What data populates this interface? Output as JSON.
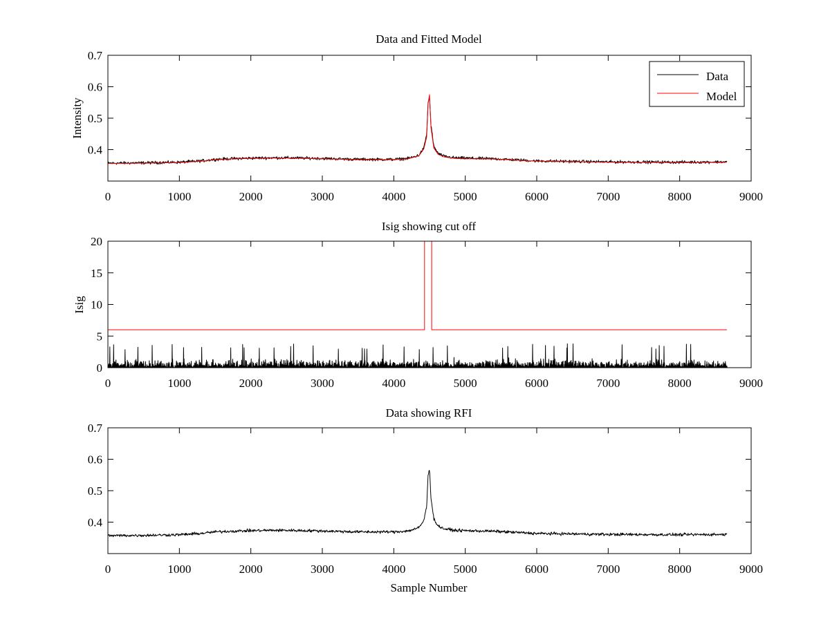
{
  "figure": {
    "background": "#ffffff",
    "colors": {
      "data": "#000000",
      "model": "#ff0000"
    }
  },
  "chart_data": [
    {
      "type": "line",
      "title": "Data and Fitted Model",
      "xlabel": "",
      "ylabel": "Intensity",
      "xlim": [
        0,
        9000
      ],
      "ylim": [
        0.3,
        0.7
      ],
      "xticks": [
        0,
        1000,
        2000,
        3000,
        4000,
        5000,
        6000,
        7000,
        8000,
        9000
      ],
      "yticks": [
        0.4,
        0.5,
        0.6,
        0.7
      ],
      "ytick_labels": [
        "0.4",
        "0.5",
        "0.6",
        "0.7"
      ],
      "legend": {
        "position": "top-right",
        "entries": [
          "Data",
          "Model"
        ]
      },
      "series": [
        {
          "name": "Data",
          "color": "#000000",
          "noise": 0.004,
          "x": [
            0,
            500,
            1000,
            1300,
            1500,
            1700,
            2000,
            2300,
            2500,
            3000,
            3500,
            4000,
            4200,
            4350,
            4420,
            4460,
            4480,
            4500,
            4520,
            4560,
            4620,
            4700,
            4850,
            5000,
            5400,
            6000,
            7000,
            8000,
            8660
          ],
          "y": [
            0.357,
            0.358,
            0.36,
            0.364,
            0.369,
            0.371,
            0.373,
            0.374,
            0.374,
            0.372,
            0.369,
            0.369,
            0.372,
            0.382,
            0.405,
            0.45,
            0.55,
            0.57,
            0.48,
            0.41,
            0.388,
            0.379,
            0.374,
            0.373,
            0.371,
            0.364,
            0.361,
            0.36,
            0.361
          ]
        },
        {
          "name": "Model",
          "color": "#ff0000",
          "noise": 0,
          "x": [
            0,
            500,
            1000,
            1300,
            1500,
            1700,
            2000,
            2300,
            2500,
            3000,
            3500,
            4000,
            4200,
            4350,
            4420,
            4460,
            4480,
            4500,
            4520,
            4560,
            4620,
            4700,
            4850,
            5000,
            5400,
            6000,
            7000,
            8000,
            8660
          ],
          "y": [
            0.356,
            0.357,
            0.359,
            0.363,
            0.368,
            0.37,
            0.372,
            0.373,
            0.373,
            0.371,
            0.368,
            0.368,
            0.371,
            0.38,
            0.402,
            0.44,
            0.545,
            0.575,
            0.47,
            0.405,
            0.385,
            0.377,
            0.372,
            0.371,
            0.37,
            0.363,
            0.36,
            0.359,
            0.36
          ]
        }
      ]
    },
    {
      "type": "line",
      "title": "Isig showing cut off",
      "xlabel": "",
      "ylabel": "Isig",
      "xlim": [
        0,
        9000
      ],
      "ylim": [
        0,
        20
      ],
      "xticks": [
        0,
        1000,
        2000,
        3000,
        4000,
        5000,
        6000,
        7000,
        8000,
        9000
      ],
      "yticks": [
        0,
        5,
        10,
        15,
        20
      ],
      "ytick_labels": [
        "0",
        "5",
        "10",
        "15",
        "20"
      ],
      "series": [
        {
          "name": "Isig",
          "color": "#000000",
          "style": "noise",
          "x_range": [
            0,
            8660
          ],
          "typical": 1.0,
          "max": 3.8
        },
        {
          "name": "Cut off",
          "color": "#ff0000",
          "x": [
            0,
            4430,
            4430,
            4530,
            4530,
            8660
          ],
          "y": [
            6,
            6,
            20,
            20,
            6,
            6
          ]
        }
      ]
    },
    {
      "type": "line",
      "title": "Data showing RFI",
      "xlabel": "Sample Number",
      "ylabel": "",
      "xlim": [
        0,
        9000
      ],
      "ylim": [
        0.3,
        0.7
      ],
      "xticks": [
        0,
        1000,
        2000,
        3000,
        4000,
        5000,
        6000,
        7000,
        8000,
        9000
      ],
      "yticks": [
        0.4,
        0.5,
        0.6,
        0.7
      ],
      "ytick_labels": [
        "0.4",
        "0.5",
        "0.6",
        "0.7"
      ],
      "series": [
        {
          "name": "Data",
          "color": "#000000",
          "noise": 0.004,
          "x": [
            0,
            500,
            1000,
            1300,
            1500,
            1700,
            2000,
            2300,
            2500,
            3000,
            3500,
            4000,
            4200,
            4350,
            4420,
            4460,
            4480,
            4500,
            4520,
            4560,
            4620,
            4700,
            4850,
            5000,
            5400,
            6000,
            7000,
            8000,
            8660
          ],
          "y": [
            0.357,
            0.358,
            0.36,
            0.364,
            0.369,
            0.371,
            0.373,
            0.374,
            0.374,
            0.372,
            0.369,
            0.369,
            0.372,
            0.382,
            0.405,
            0.45,
            0.55,
            0.57,
            0.48,
            0.41,
            0.388,
            0.379,
            0.374,
            0.373,
            0.371,
            0.364,
            0.361,
            0.36,
            0.361
          ]
        }
      ]
    }
  ]
}
